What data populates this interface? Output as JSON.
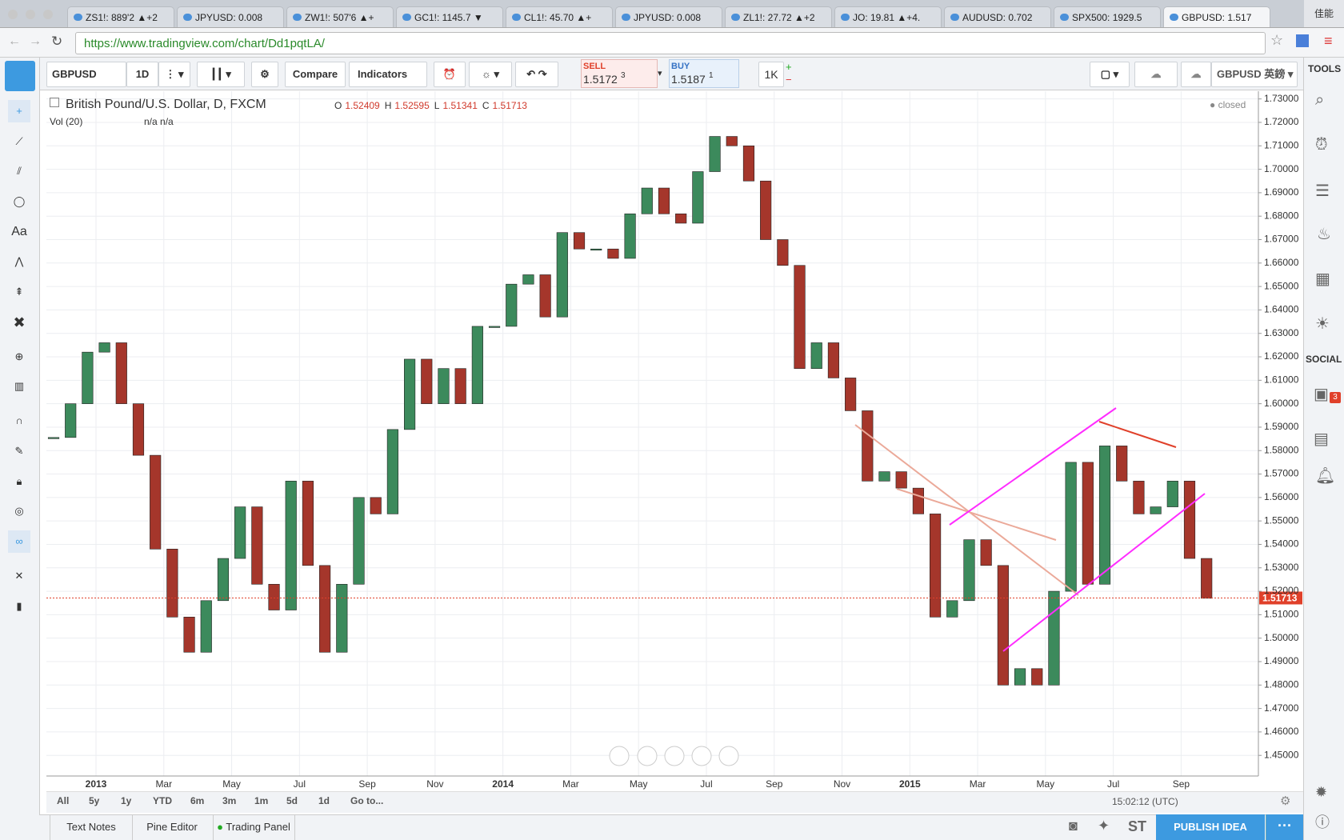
{
  "browser": {
    "tabs": [
      "ZS1!: 889'2 ▲+2",
      "JPYUSD: 0.008",
      "ZW1!: 507'6 ▲+",
      "GC1!: 1145.7 ▼",
      "CL1!: 45.70 ▲+",
      "JPYUSD: 0.008",
      "ZL1!: 27.72 ▲+2",
      "JO: 19.81 ▲+4.",
      "AUDUSD: 0.702",
      "SPX500: 1929.5",
      "GBPUSD: 1.517"
    ],
    "account": "佳能",
    "url": "https://www.tradingview.com/chart/Dd1pqtLA/"
  },
  "toolbar": {
    "symbol": "GBPUSD",
    "interval": "1D",
    "compare": "Compare",
    "indicators": "Indicators",
    "sell": {
      "label": "SELL",
      "price": "1.5172",
      "pip": "3"
    },
    "buy": {
      "label": "BUY",
      "price": "1.5187",
      "pip": "1"
    },
    "quantity": "1K",
    "watch_symbol": "GBPUSD 英鎊"
  },
  "chart_data": {
    "type": "candlestick",
    "title": "British Pound/U.S. Dollar, D, FXCM",
    "ohlc": [
      {
        "label": "O",
        "value": 1.52409
      },
      {
        "label": "H",
        "value": 1.52595
      },
      {
        "label": "L",
        "value": 1.51341
      },
      {
        "label": "C",
        "value": 1.51713
      }
    ],
    "volume_label": "Vol (20)",
    "volume_values": "n/a n/a",
    "status": "closed",
    "last_price": 1.51713,
    "up_color": "#3c8a5c",
    "down_color": "#a5362b",
    "categories": [
      null,
      null,
      null,
      "2013",
      null,
      null,
      null,
      "Mar",
      null,
      null,
      null,
      "May",
      null,
      null,
      null,
      "Jul",
      null,
      null,
      null,
      "Sep",
      null,
      null,
      null,
      "Nov",
      null,
      null,
      null,
      "2014",
      null,
      null,
      null,
      "Mar",
      null,
      null,
      null,
      "May",
      null,
      null,
      null,
      "Jul",
      null,
      null,
      null,
      "Sep",
      null,
      null,
      null,
      "Nov",
      null,
      null,
      null,
      "2015",
      null,
      null,
      null,
      "Mar",
      null,
      null,
      null,
      "May",
      null,
      null,
      null,
      "Jul",
      null,
      null,
      null,
      "Sep",
      null
    ],
    "values": [
      1.5856,
      1.6,
      1.622,
      1.626,
      1.6,
      1.578,
      1.538,
      1.509,
      1.494,
      1.516,
      1.534,
      1.556,
      1.523,
      1.512,
      1.567,
      1.531,
      1.494,
      1.523,
      1.56,
      1.553,
      1.589,
      1.619,
      1.6,
      1.615,
      1.6,
      1.633,
      1.633,
      1.651,
      1.655,
      1.637,
      1.673,
      1.666,
      1.666,
      1.662,
      1.681,
      1.692,
      1.681,
      1.677,
      1.699,
      1.714,
      1.71,
      1.695,
      1.67,
      1.659,
      1.615,
      1.626,
      1.611,
      1.597,
      1.567,
      1.571,
      1.564,
      1.553,
      1.509,
      1.516,
      1.542,
      1.531,
      1.48,
      1.487,
      1.48,
      1.52,
      1.575,
      1.523,
      1.582,
      1.567,
      1.553,
      1.556,
      1.567,
      1.534,
      1.517
    ],
    "ylim": [
      1.4412,
      1.7333
    ],
    "yticks": [
      {
        "value": 1.45,
        "label": "1.45000"
      },
      {
        "value": 1.46,
        "label": "1.46000"
      },
      {
        "value": 1.47,
        "label": "1.47000"
      },
      {
        "value": 1.48,
        "label": "1.48000"
      },
      {
        "value": 1.49,
        "label": "1.49000"
      },
      {
        "value": 1.5,
        "label": "1.50000"
      },
      {
        "value": 1.51,
        "label": "1.51000"
      },
      {
        "value": 1.52,
        "label": "1.52000"
      },
      {
        "value": 1.53,
        "label": "1.53000"
      },
      {
        "value": 1.54,
        "label": "1.54000"
      },
      {
        "value": 1.55,
        "label": "1.55000"
      },
      {
        "value": 1.56,
        "label": "1.56000"
      },
      {
        "value": 1.57,
        "label": "1.57000"
      },
      {
        "value": 1.58,
        "label": "1.58000"
      },
      {
        "value": 1.59,
        "label": "1.59000"
      },
      {
        "value": 1.6,
        "label": "1.60000"
      },
      {
        "value": 1.61,
        "label": "1.61000"
      },
      {
        "value": 1.62,
        "label": "1.62000"
      },
      {
        "value": 1.63,
        "label": "1.63000"
      },
      {
        "value": 1.64,
        "label": "1.64000"
      },
      {
        "value": 1.65,
        "label": "1.65000"
      },
      {
        "value": 1.66,
        "label": "1.66000"
      },
      {
        "value": 1.67,
        "label": "1.67000"
      },
      {
        "value": 1.68,
        "label": "1.68000"
      },
      {
        "value": 1.69,
        "label": "1.69000"
      },
      {
        "value": 1.7,
        "label": "1.70000"
      },
      {
        "value": 1.71,
        "label": "1.71000"
      },
      {
        "value": 1.72,
        "label": "1.72000"
      },
      {
        "value": 1.73,
        "label": "1.73000"
      }
    ],
    "grid": true
  },
  "range_buttons": [
    "All",
    "5y",
    "1y",
    "YTD",
    "6m",
    "3m",
    "1m",
    "5d",
    "1d",
    "Go to..."
  ],
  "clock": "15:02:12 (UTC)",
  "bottom_tabs": [
    "Text Notes",
    "Pine Editor",
    "Trading Panel"
  ],
  "bottom_right": {
    "st": "ST",
    "publish": "PUBLISH IDEA"
  },
  "sidebar": {
    "tools": "TOOLS",
    "social": "SOCIAL",
    "badge": 3
  }
}
